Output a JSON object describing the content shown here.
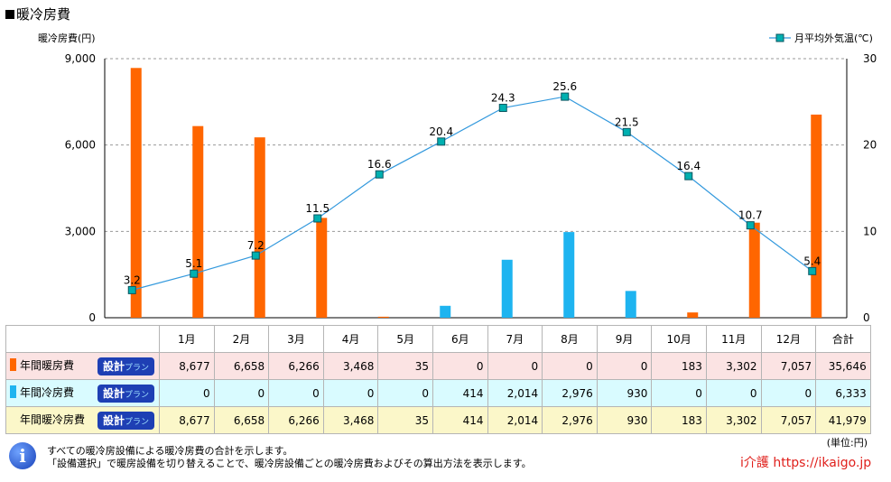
{
  "title": "暖冷房費",
  "chart_data": {
    "type": "bar",
    "categories": [
      "1月",
      "2月",
      "3月",
      "4月",
      "5月",
      "6月",
      "7月",
      "8月",
      "9月",
      "10月",
      "11月",
      "12月"
    ],
    "ylabel": "暖冷房費(円)",
    "ylim": [
      0,
      9000
    ],
    "yticks": [
      "0",
      "3,000",
      "6,000",
      "9,000"
    ],
    "y2lim": [
      0,
      30
    ],
    "y2ticks": [
      "0",
      "10",
      "20",
      "30"
    ],
    "grid": true,
    "legend_position": "top-right",
    "series": [
      {
        "values": [
          8677,
          6658,
          6266,
          3468,
          35,
          0,
          0,
          0,
          0,
          183,
          3302,
          7057
        ],
        "color": "#ff6600"
      },
      {
        "values": [
          0,
          0,
          0,
          0,
          0,
          414,
          2014,
          2976,
          930,
          0,
          0,
          0
        ],
        "color": "#1eb4f0"
      },
      {
        "name": "月平均外気温(℃)",
        "type": "line",
        "axis": "right",
        "values": [
          3.2,
          5.1,
          7.2,
          11.5,
          16.6,
          20.4,
          24.3,
          25.6,
          21.5,
          16.4,
          10.7,
          5.4
        ],
        "labels": [
          "3.2",
          "5.1",
          "7.2",
          "11.5",
          "16.6",
          "20.4",
          "24.3",
          "25.6",
          "21.5",
          "16.4",
          "10.7",
          "5.4"
        ],
        "color": "#3399dd",
        "marker_color": "#00b0b0"
      }
    ]
  },
  "table": {
    "headers": [
      "1月",
      "2月",
      "3月",
      "4月",
      "5月",
      "6月",
      "7月",
      "8月",
      "9月",
      "10月",
      "11月",
      "12月",
      "合計"
    ],
    "plan_label": "設計",
    "plan_suffix": "プラン",
    "rows": [
      {
        "label": "年間暖房費",
        "color": "#ff6600",
        "values": [
          "8,677",
          "6,658",
          "6,266",
          "3,468",
          "35",
          "0",
          "0",
          "0",
          "0",
          "183",
          "3,302",
          "7,057",
          "35,646"
        ]
      },
      {
        "label": "年間冷房費",
        "color": "#1eb4f0",
        "values": [
          "0",
          "0",
          "0",
          "0",
          "0",
          "414",
          "2,014",
          "2,976",
          "930",
          "0",
          "0",
          "0",
          "6,333"
        ]
      },
      {
        "label": "年間暖冷房費",
        "color": null,
        "values": [
          "8,677",
          "6,658",
          "6,266",
          "3,468",
          "35",
          "414",
          "2,014",
          "2,976",
          "930",
          "183",
          "3,302",
          "7,057",
          "41,979"
        ]
      }
    ]
  },
  "unit": "(単位:円)",
  "info_icon": "i",
  "notes": [
    "すべての暖冷房設備による暖冷房費の合計を示します。",
    "「設備選択」で暖房設備を切り替えることで、暖冷房設備ごとの暖冷房費およびその算出方法を表示します。"
  ],
  "brand": "i介護 https://ikaigo.jp"
}
